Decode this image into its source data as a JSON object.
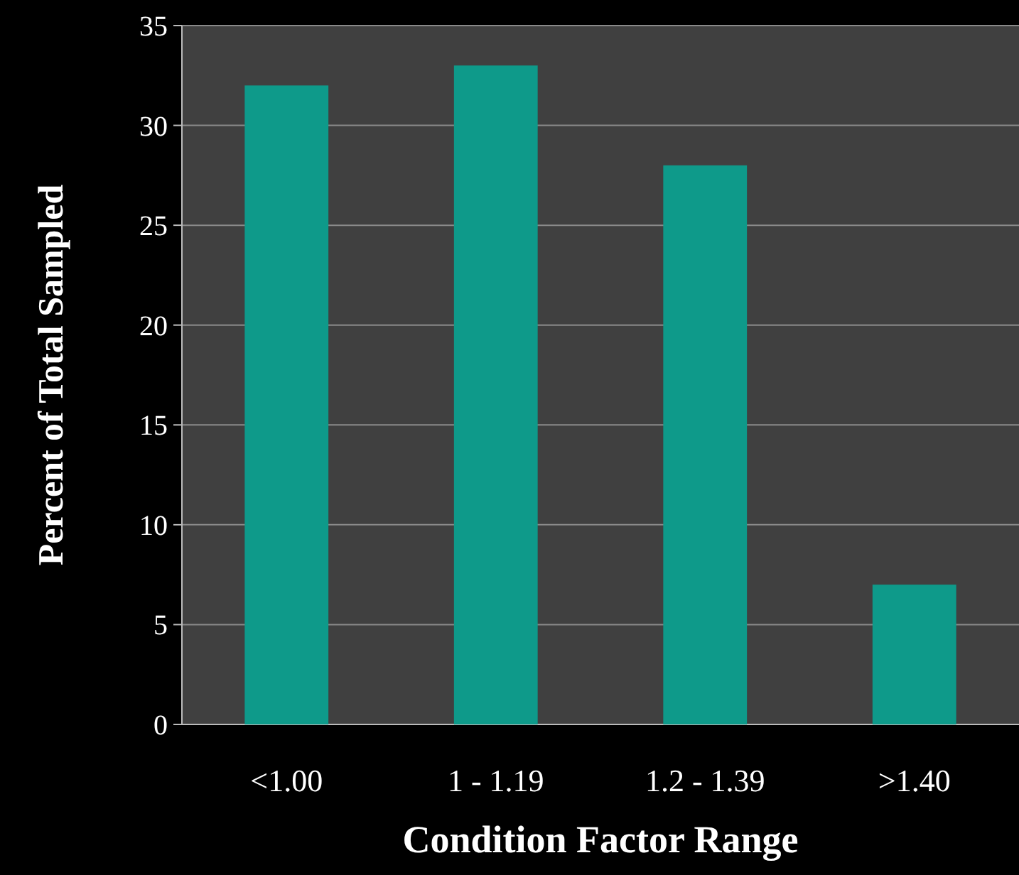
{
  "chart_data": {
    "type": "bar",
    "xlabel": "Condition Factor Range",
    "ylabel": "Percent of Total Sampled",
    "categories": [
      "<1.00",
      "1 - 1.19",
      "1.2 - 1.39",
      ">1.40"
    ],
    "values": [
      32,
      33,
      28,
      7
    ],
    "color": "#0e9a8a",
    "ylim": [
      0,
      35
    ],
    "yticks": [
      0,
      5,
      10,
      15,
      20,
      25,
      30,
      35
    ],
    "grid": "y"
  }
}
